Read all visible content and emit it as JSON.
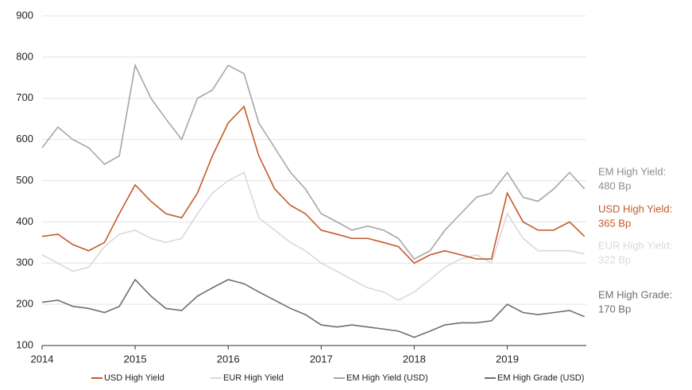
{
  "chart_data": {
    "type": "line",
    "x": [
      2014,
      2014.17,
      2014.33,
      2014.5,
      2014.67,
      2014.83,
      2015,
      2015.17,
      2015.33,
      2015.5,
      2015.67,
      2015.83,
      2016,
      2016.17,
      2016.33,
      2016.5,
      2016.67,
      2016.83,
      2017,
      2017.17,
      2017.33,
      2017.5,
      2017.67,
      2017.83,
      2018,
      2018.17,
      2018.33,
      2018.5,
      2018.67,
      2018.83,
      2019,
      2019.17,
      2019.33,
      2019.5,
      2019.67,
      2019.83
    ],
    "series": [
      {
        "name": "USD High Yield",
        "color": "#c55a28",
        "values": [
          365,
          370,
          345,
          330,
          350,
          420,
          490,
          450,
          420,
          410,
          470,
          560,
          640,
          680,
          560,
          480,
          440,
          420,
          380,
          370,
          360,
          360,
          350,
          340,
          300,
          320,
          330,
          320,
          310,
          310,
          470,
          400,
          380,
          380,
          400,
          365
        ]
      },
      {
        "name": "EUR High Yield",
        "color": "#d9d9d9",
        "values": [
          320,
          300,
          280,
          290,
          340,
          370,
          380,
          360,
          350,
          360,
          420,
          470,
          500,
          520,
          410,
          380,
          350,
          330,
          300,
          280,
          260,
          240,
          230,
          210,
          230,
          260,
          290,
          310,
          320,
          300,
          420,
          360,
          330,
          330,
          330,
          322
        ]
      },
      {
        "name": "EM High Yield (USD)",
        "color": "#a6a6a6",
        "values": [
          580,
          630,
          600,
          580,
          540,
          560,
          780,
          700,
          650,
          600,
          700,
          720,
          780,
          760,
          640,
          580,
          520,
          480,
          420,
          400,
          380,
          390,
          380,
          360,
          310,
          330,
          380,
          420,
          460,
          470,
          520,
          460,
          450,
          480,
          520,
          480
        ]
      },
      {
        "name": "EM High Grade (USD)",
        "color": "#6e6e6e",
        "values": [
          205,
          210,
          195,
          190,
          180,
          195,
          260,
          220,
          190,
          185,
          220,
          240,
          260,
          250,
          230,
          210,
          190,
          175,
          150,
          145,
          150,
          145,
          140,
          135,
          120,
          135,
          150,
          155,
          155,
          160,
          200,
          180,
          175,
          180,
          185,
          170
        ]
      }
    ],
    "xlim": [
      2014,
      2019.85
    ],
    "xticks": [
      2014,
      2015,
      2016,
      2017,
      2018,
      2019
    ],
    "ylim": [
      100,
      900
    ],
    "yticks": [
      100,
      200,
      300,
      400,
      500,
      600,
      700,
      800,
      900
    ],
    "grid": true,
    "annotations": [
      {
        "lines": [
          "EM High Yield:",
          "480 Bp"
        ],
        "color": "#8c8c8c",
        "value": 480
      },
      {
        "lines": [
          "USD High Yield:",
          "365 Bp"
        ],
        "color": "#c55a28",
        "value": 365
      },
      {
        "lines": [
          "EUR High Yield:",
          "322 Bp"
        ],
        "color": "#d9d9d9",
        "value": 322
      },
      {
        "lines": [
          "EM High Grade:",
          "170 Bp"
        ],
        "color": "#6e6e6e",
        "value": 170
      }
    ]
  }
}
